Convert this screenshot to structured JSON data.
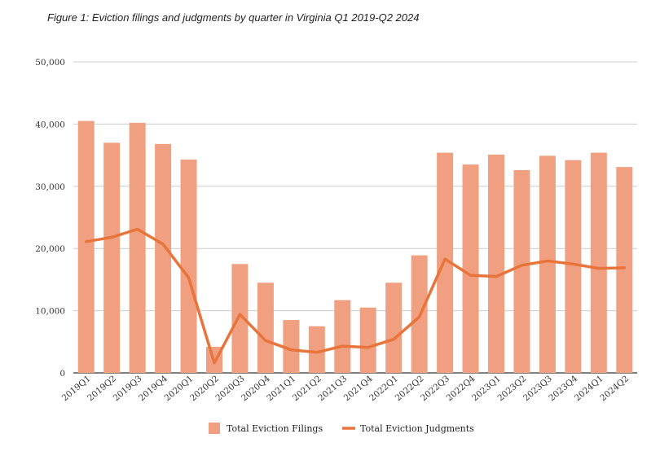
{
  "chart_data": {
    "type": "bar",
    "title": "Figure 1: Eviction filings and judgments by quarter in Virginia Q1 2019-Q2 2024",
    "categories": [
      "2019Q1",
      "2019Q2",
      "2019Q3",
      "2019Q4",
      "2020Q1",
      "2020Q2",
      "2020Q3",
      "2020Q4",
      "2021Q1",
      "2021Q2",
      "2021Q3",
      "2021Q4",
      "2022Q1",
      "2022Q2",
      "2022Q3",
      "2022Q4",
      "2023Q1",
      "2023Q2",
      "2023Q3",
      "2023Q4",
      "2024Q1",
      "2024Q2"
    ],
    "series": [
      {
        "name": "Total Eviction Filings",
        "type": "bar",
        "color": "#f0a080",
        "values": [
          40500,
          37000,
          40200,
          36800,
          34300,
          4200,
          17500,
          14500,
          8500,
          7500,
          11700,
          10500,
          14500,
          18900,
          35400,
          33500,
          35100,
          32600,
          34900,
          34200,
          35400,
          33100
        ]
      },
      {
        "name": "Total Eviction Judgments",
        "type": "line",
        "color": "#e8743b",
        "values": [
          21100,
          21800,
          23100,
          20700,
          15300,
          1600,
          9400,
          5200,
          3700,
          3300,
          4300,
          4100,
          5400,
          9000,
          18300,
          15700,
          15500,
          17300,
          18000,
          17500,
          16800,
          16900
        ]
      }
    ],
    "yticks": [
      "0",
      "10,000",
      "20,000",
      "30,000",
      "40,000",
      "50,000"
    ],
    "ylim": [
      0,
      50000
    ],
    "grid": true,
    "legend": "bottom-center"
  }
}
